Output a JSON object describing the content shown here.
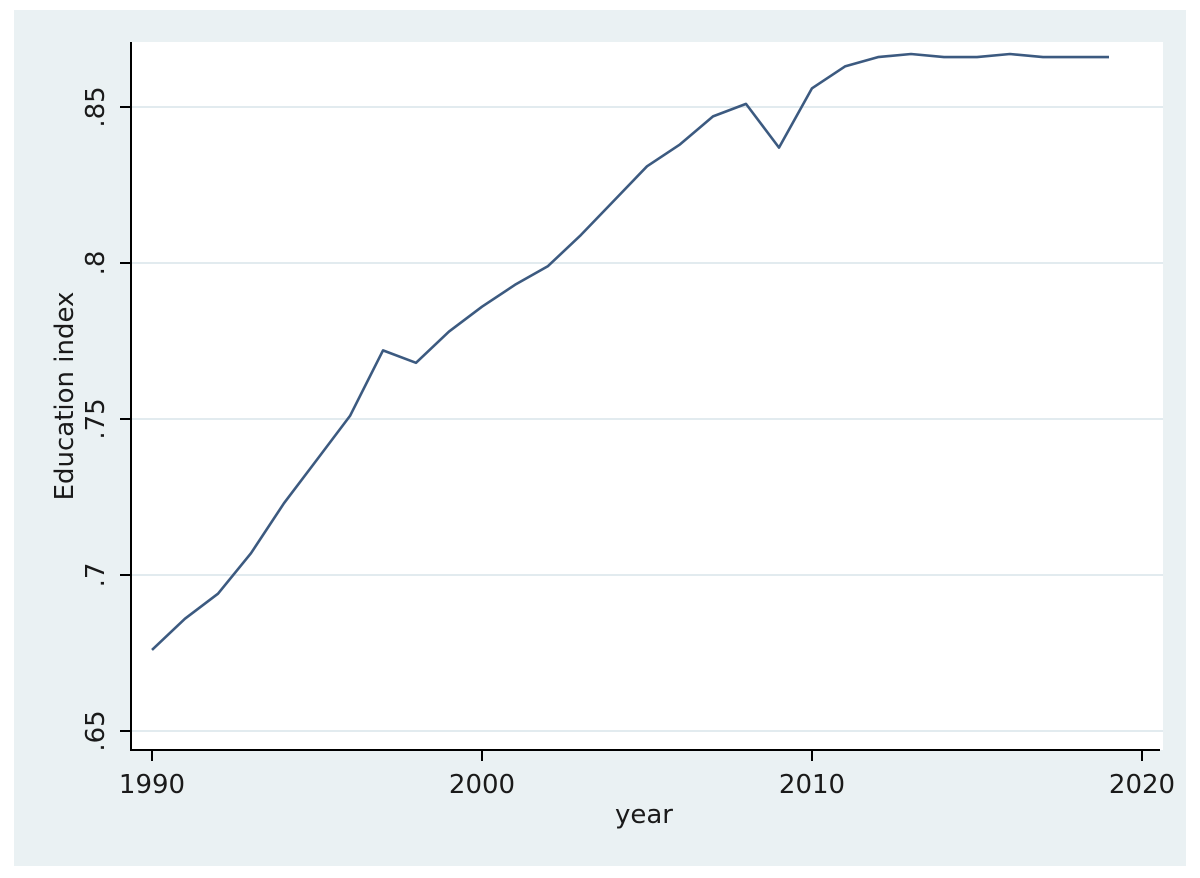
{
  "chart_data": {
    "type": "line",
    "title": "",
    "xlabel": "year",
    "ylabel": "Education index",
    "xlim": [
      1990,
      2020
    ],
    "ylim": [
      0.65,
      0.873
    ],
    "x_ticks": [
      1990,
      2000,
      2010,
      2020
    ],
    "x_tick_labels": [
      "1990",
      "2000",
      "2010",
      "2020"
    ],
    "y_ticks": [
      0.65,
      0.7,
      0.75,
      0.8,
      0.85
    ],
    "y_tick_labels": [
      ".65",
      ".7",
      ".75",
      ".8",
      ".85"
    ],
    "grid": true,
    "legend": "none",
    "series": [
      {
        "color": "#3c5a80",
        "x": [
          1990,
          1991,
          1992,
          1993,
          1994,
          1995,
          1996,
          1997,
          1998,
          1999,
          2000,
          2001,
          2002,
          2003,
          2004,
          2005,
          2006,
          2007,
          2008,
          2009,
          2010,
          2011,
          2012,
          2013,
          2014,
          2015,
          2016,
          2017,
          2018,
          2019
        ],
        "values": [
          0.676,
          0.686,
          0.694,
          0.707,
          0.723,
          0.737,
          0.751,
          0.772,
          0.768,
          0.778,
          0.786,
          0.793,
          0.799,
          0.809,
          0.82,
          0.831,
          0.838,
          0.847,
          0.851,
          0.837,
          0.856,
          0.863,
          0.866,
          0.867,
          0.866,
          0.866,
          0.867,
          0.866,
          0.866,
          0.866
        ]
      }
    ],
    "colors": {
      "outer_background": "#eaf1f3",
      "plot_background": "#ffffff",
      "gridline": "#e2ebef",
      "axis": "#000000",
      "line": "#3c5a80"
    }
  }
}
